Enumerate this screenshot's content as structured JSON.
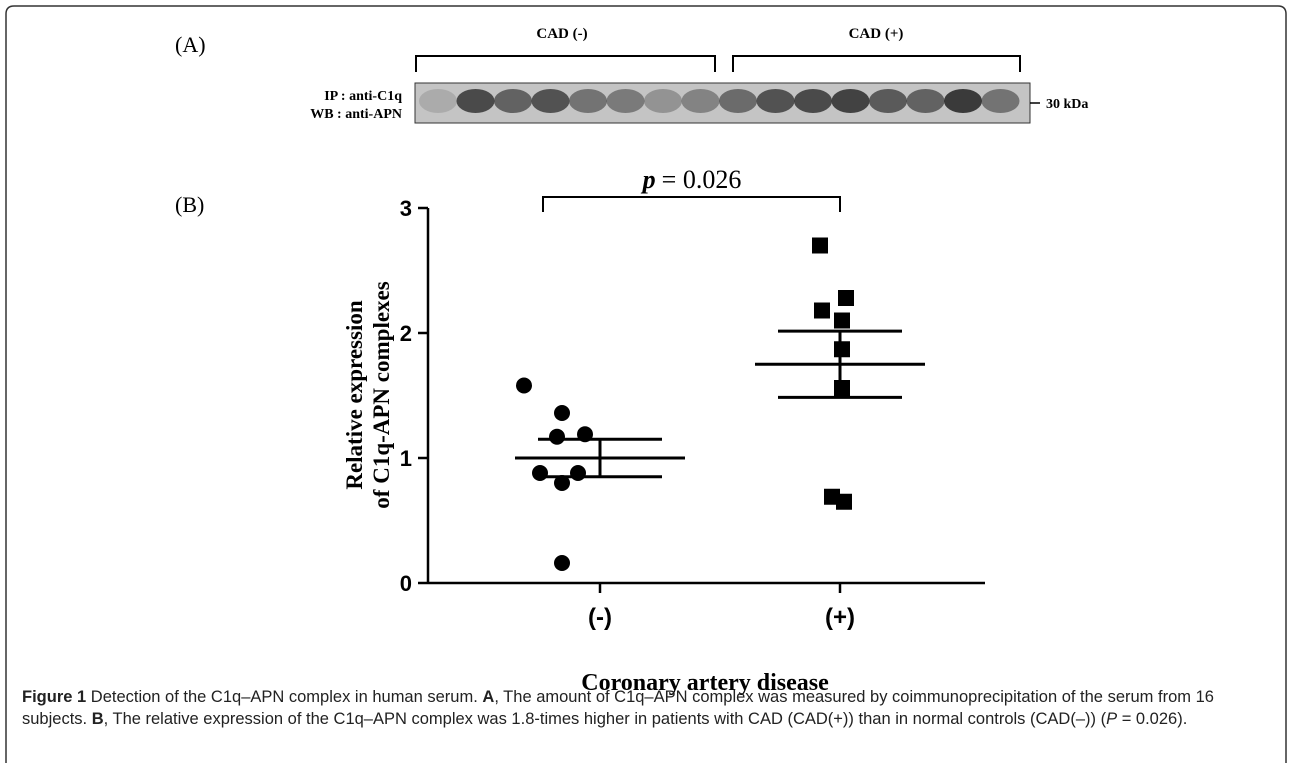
{
  "panel_a": {
    "label": "(A)",
    "groups": [
      "CAD (-)",
      "CAD (+)"
    ],
    "blot_labels": [
      "IP : anti-C1q",
      "WB : anti-APN"
    ],
    "marker": "30 kDa"
  },
  "chart_data": {
    "type": "dot",
    "panel_label": "(B)",
    "ylabel": [
      "Relative expression",
      "of C1q-APN complexes"
    ],
    "xlabel": "Coronary artery disease",
    "categories": [
      "(-)",
      "(+)"
    ],
    "points": [
      [
        1.58,
        1.36,
        1.19,
        1.17,
        0.88,
        0.88,
        0.8,
        0.16
      ],
      [
        2.7,
        2.28,
        2.18,
        2.1,
        1.87,
        1.56,
        0.69,
        0.65
      ]
    ],
    "means": [
      1.0,
      1.75
    ],
    "errors": [
      0.15,
      0.265
    ],
    "markers": [
      "circle",
      "square"
    ],
    "color": "#000000",
    "ylim": [
      0,
      3
    ],
    "yticks": [
      0,
      1,
      2,
      3
    ],
    "annotation": {
      "symbol": "p",
      "text": "= 0.026"
    }
  },
  "caption": {
    "title": "Figure 1",
    "segments": [
      {
        "text": " Detection of the C1q–APN complex in human serum. ",
        "bold": false
      },
      {
        "text": "A",
        "bold": true
      },
      {
        "text": ", The amount of C1q–APN complex was measured by coimmunoprecipitation of the serum from 16 subjects. ",
        "bold": false
      },
      {
        "text": "B",
        "bold": true
      },
      {
        "text": ", The relative expression of the C1q–APN complex was 1.8-times higher in patients with CAD (CAD(+)) than in normal controls (CAD(–)) (",
        "bold": false
      },
      {
        "text": "P",
        "italic": true
      },
      {
        "text": " = 0.026).",
        "bold": false
      }
    ]
  }
}
